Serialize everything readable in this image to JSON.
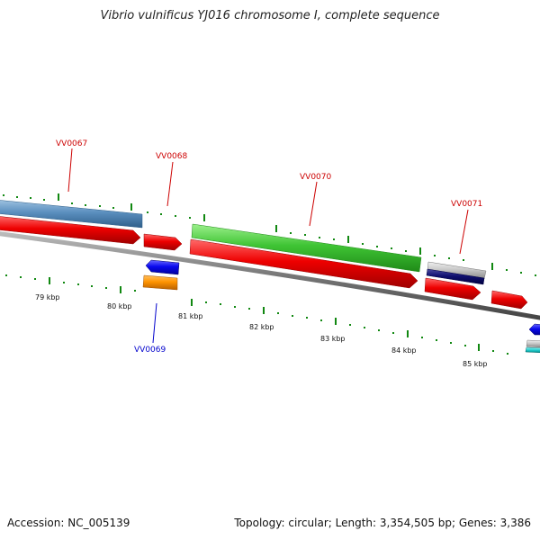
{
  "title": "Vibrio vulnificus YJ016 chromosome I, complete sequence",
  "footer": {
    "accession": "Accession: NC_005139",
    "summary": "Topology: circular; Length: 3,354,505 bp; Genes: 3,386"
  },
  "colors": {
    "forward_label": "#cc0000",
    "reverse_label": "#0000cc",
    "tick": "#118811",
    "backbone": "#888888"
  },
  "gene_labels": [
    {
      "id": "vv0067",
      "text": "VV0067",
      "strand": "forward"
    },
    {
      "id": "vv0068",
      "text": "VV0068",
      "strand": "forward"
    },
    {
      "id": "vv0070",
      "text": "VV0070",
      "strand": "forward"
    },
    {
      "id": "vv0071",
      "text": "VV0071",
      "strand": "forward"
    },
    {
      "id": "vv0069",
      "text": "VV0069",
      "strand": "reverse"
    }
  ],
  "kbp_labels": [
    "79 kbp",
    "80 kbp",
    "81 kbp",
    "82 kbp",
    "83 kbp",
    "84 kbp",
    "85 kbp"
  ]
}
